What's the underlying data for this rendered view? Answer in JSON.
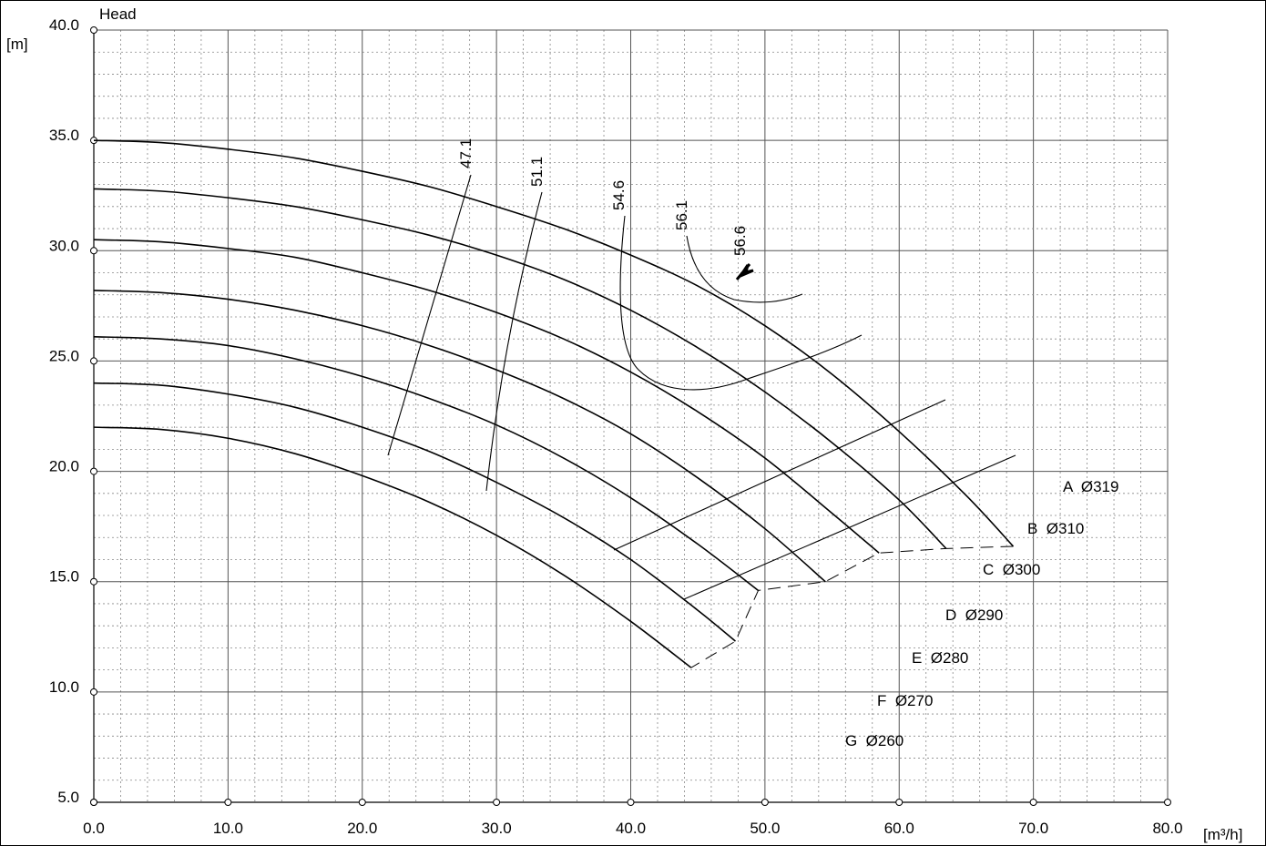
{
  "chart_data": {
    "type": "line",
    "ylabel": "Head",
    "yunit": "[m]",
    "xunit": "[m³/h]",
    "xlim": [
      0,
      80
    ],
    "ylim": [
      5,
      40
    ],
    "x_ticks": [
      "0.0",
      "10.0",
      "20.0",
      "30.0",
      "40.0",
      "50.0",
      "60.0",
      "70.0",
      "80.0"
    ],
    "y_ticks": [
      "5.0",
      "10.0",
      "15.0",
      "20.0",
      "25.0",
      "30.0",
      "35.0",
      "40.0"
    ],
    "grid": true,
    "series": [
      {
        "name": "A",
        "diameter": "Ø319",
        "points": [
          [
            0,
            35.0
          ],
          [
            5,
            34.9
          ],
          [
            10,
            34.6
          ],
          [
            15,
            34.2
          ],
          [
            20,
            33.6
          ],
          [
            25,
            32.9
          ],
          [
            30,
            32.0
          ],
          [
            35,
            31.0
          ],
          [
            40,
            29.8
          ],
          [
            45,
            28.4
          ],
          [
            50,
            26.6
          ],
          [
            55,
            24.4
          ],
          [
            60,
            21.8
          ],
          [
            65,
            18.9
          ],
          [
            68.5,
            16.6
          ]
        ]
      },
      {
        "name": "B",
        "diameter": "Ø310",
        "points": [
          [
            0,
            32.8
          ],
          [
            5,
            32.7
          ],
          [
            10,
            32.4
          ],
          [
            15,
            32.0
          ],
          [
            20,
            31.4
          ],
          [
            25,
            30.7
          ],
          [
            30,
            29.8
          ],
          [
            35,
            28.7
          ],
          [
            40,
            27.3
          ],
          [
            45,
            25.6
          ],
          [
            50,
            23.6
          ],
          [
            55,
            21.3
          ],
          [
            60,
            18.7
          ],
          [
            63.5,
            16.5
          ]
        ]
      },
      {
        "name": "C",
        "diameter": "Ø300",
        "points": [
          [
            0,
            30.5
          ],
          [
            5,
            30.4
          ],
          [
            10,
            30.1
          ],
          [
            15,
            29.7
          ],
          [
            20,
            29.0
          ],
          [
            25,
            28.2
          ],
          [
            30,
            27.2
          ],
          [
            35,
            26.0
          ],
          [
            40,
            24.5
          ],
          [
            45,
            22.7
          ],
          [
            50,
            20.6
          ],
          [
            55,
            18.1
          ],
          [
            58.5,
            16.3
          ]
        ]
      },
      {
        "name": "D",
        "diameter": "Ø290",
        "points": [
          [
            0,
            28.2
          ],
          [
            5,
            28.1
          ],
          [
            10,
            27.8
          ],
          [
            15,
            27.3
          ],
          [
            20,
            26.6
          ],
          [
            25,
            25.7
          ],
          [
            30,
            24.6
          ],
          [
            35,
            23.3
          ],
          [
            40,
            21.7
          ],
          [
            45,
            19.7
          ],
          [
            50,
            17.4
          ],
          [
            54.5,
            15.0
          ]
        ]
      },
      {
        "name": "E",
        "diameter": "Ø280",
        "points": [
          [
            0,
            26.1
          ],
          [
            5,
            26.0
          ],
          [
            10,
            25.7
          ],
          [
            15,
            25.1
          ],
          [
            20,
            24.3
          ],
          [
            25,
            23.3
          ],
          [
            30,
            22.1
          ],
          [
            35,
            20.6
          ],
          [
            40,
            18.8
          ],
          [
            45,
            16.7
          ],
          [
            49.5,
            14.6
          ]
        ]
      },
      {
        "name": "F",
        "diameter": "Ø270",
        "points": [
          [
            0,
            24.0
          ],
          [
            5,
            23.9
          ],
          [
            10,
            23.5
          ],
          [
            15,
            22.9
          ],
          [
            20,
            22.0
          ],
          [
            25,
            20.9
          ],
          [
            30,
            19.5
          ],
          [
            35,
            17.9
          ],
          [
            40,
            16.0
          ],
          [
            45,
            13.7
          ],
          [
            47.8,
            12.3
          ]
        ]
      },
      {
        "name": "G",
        "diameter": "Ø260",
        "points": [
          [
            0,
            22.0
          ],
          [
            5,
            21.9
          ],
          [
            10,
            21.5
          ],
          [
            15,
            20.8
          ],
          [
            20,
            19.8
          ],
          [
            25,
            18.6
          ],
          [
            30,
            17.1
          ],
          [
            35,
            15.3
          ],
          [
            40,
            13.2
          ],
          [
            44.5,
            11.1
          ]
        ]
      }
    ],
    "series_labels": [
      "A  Ø319",
      "B  Ø310",
      "C  Ø300",
      "D  Ø290",
      "E  Ø280",
      "F  Ø270",
      "G  Ø260"
    ],
    "efficiency_labels": [
      "47.1",
      "51.1",
      "54.6",
      "56.1",
      "56.6"
    ]
  }
}
